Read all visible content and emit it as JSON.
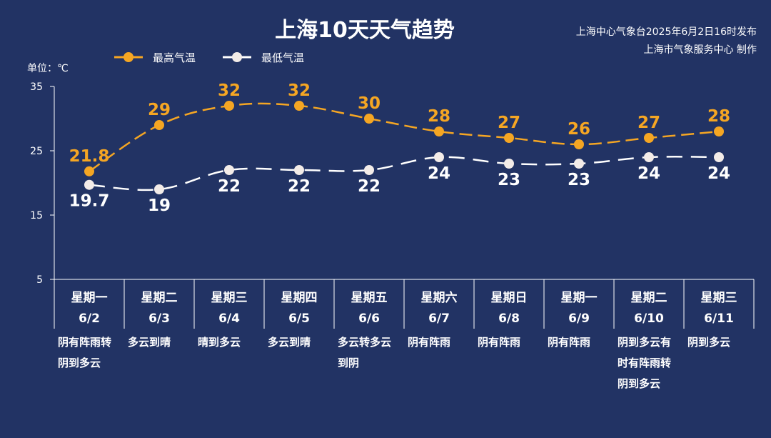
{
  "title": "上海10天天气趋势",
  "source_lines": [
    "上海中心气象台2025年6月2日16时发布",
    "上海市气象服务中心 制作"
  ],
  "unit_label": "单位：℃",
  "colors": {
    "background": "#223364",
    "high": "#f5a623",
    "low": "#ffffff",
    "low_marker": "#f3ece8"
  },
  "chart_data": {
    "type": "line",
    "title": "上海10天天气趋势",
    "ylabel": "单位：℃",
    "ylim": [
      5,
      35
    ],
    "yticks": [
      5,
      15,
      25,
      35
    ],
    "grid": false,
    "legend_position": "top-left",
    "categories": [
      "6/2",
      "6/3",
      "6/4",
      "6/5",
      "6/6",
      "6/7",
      "6/8",
      "6/9",
      "6/10",
      "6/11"
    ],
    "weekdays": [
      "星期一",
      "星期二",
      "星期三",
      "星期四",
      "星期五",
      "星期六",
      "星期日",
      "星期一",
      "星期二",
      "星期三"
    ],
    "series": [
      {
        "name": "最高气温",
        "values": [
          21.8,
          29,
          32,
          32,
          30,
          28,
          27,
          26,
          27,
          28
        ]
      },
      {
        "name": "最低气温",
        "values": [
          19.7,
          19,
          22,
          22,
          22,
          24,
          23,
          23,
          24,
          24
        ]
      }
    ],
    "descriptions": [
      [
        "阴有阵雨转",
        "阴到多云"
      ],
      [
        "多云到晴"
      ],
      [
        "晴到多云"
      ],
      [
        "多云到晴"
      ],
      [
        "多云转多云",
        "到阴"
      ],
      [
        "阴有阵雨"
      ],
      [
        "阴有阵雨"
      ],
      [
        "阴有阵雨"
      ],
      [
        "阴到多云有",
        "时有阵雨转",
        "阴到多云"
      ],
      [
        "阴到多云"
      ]
    ]
  }
}
